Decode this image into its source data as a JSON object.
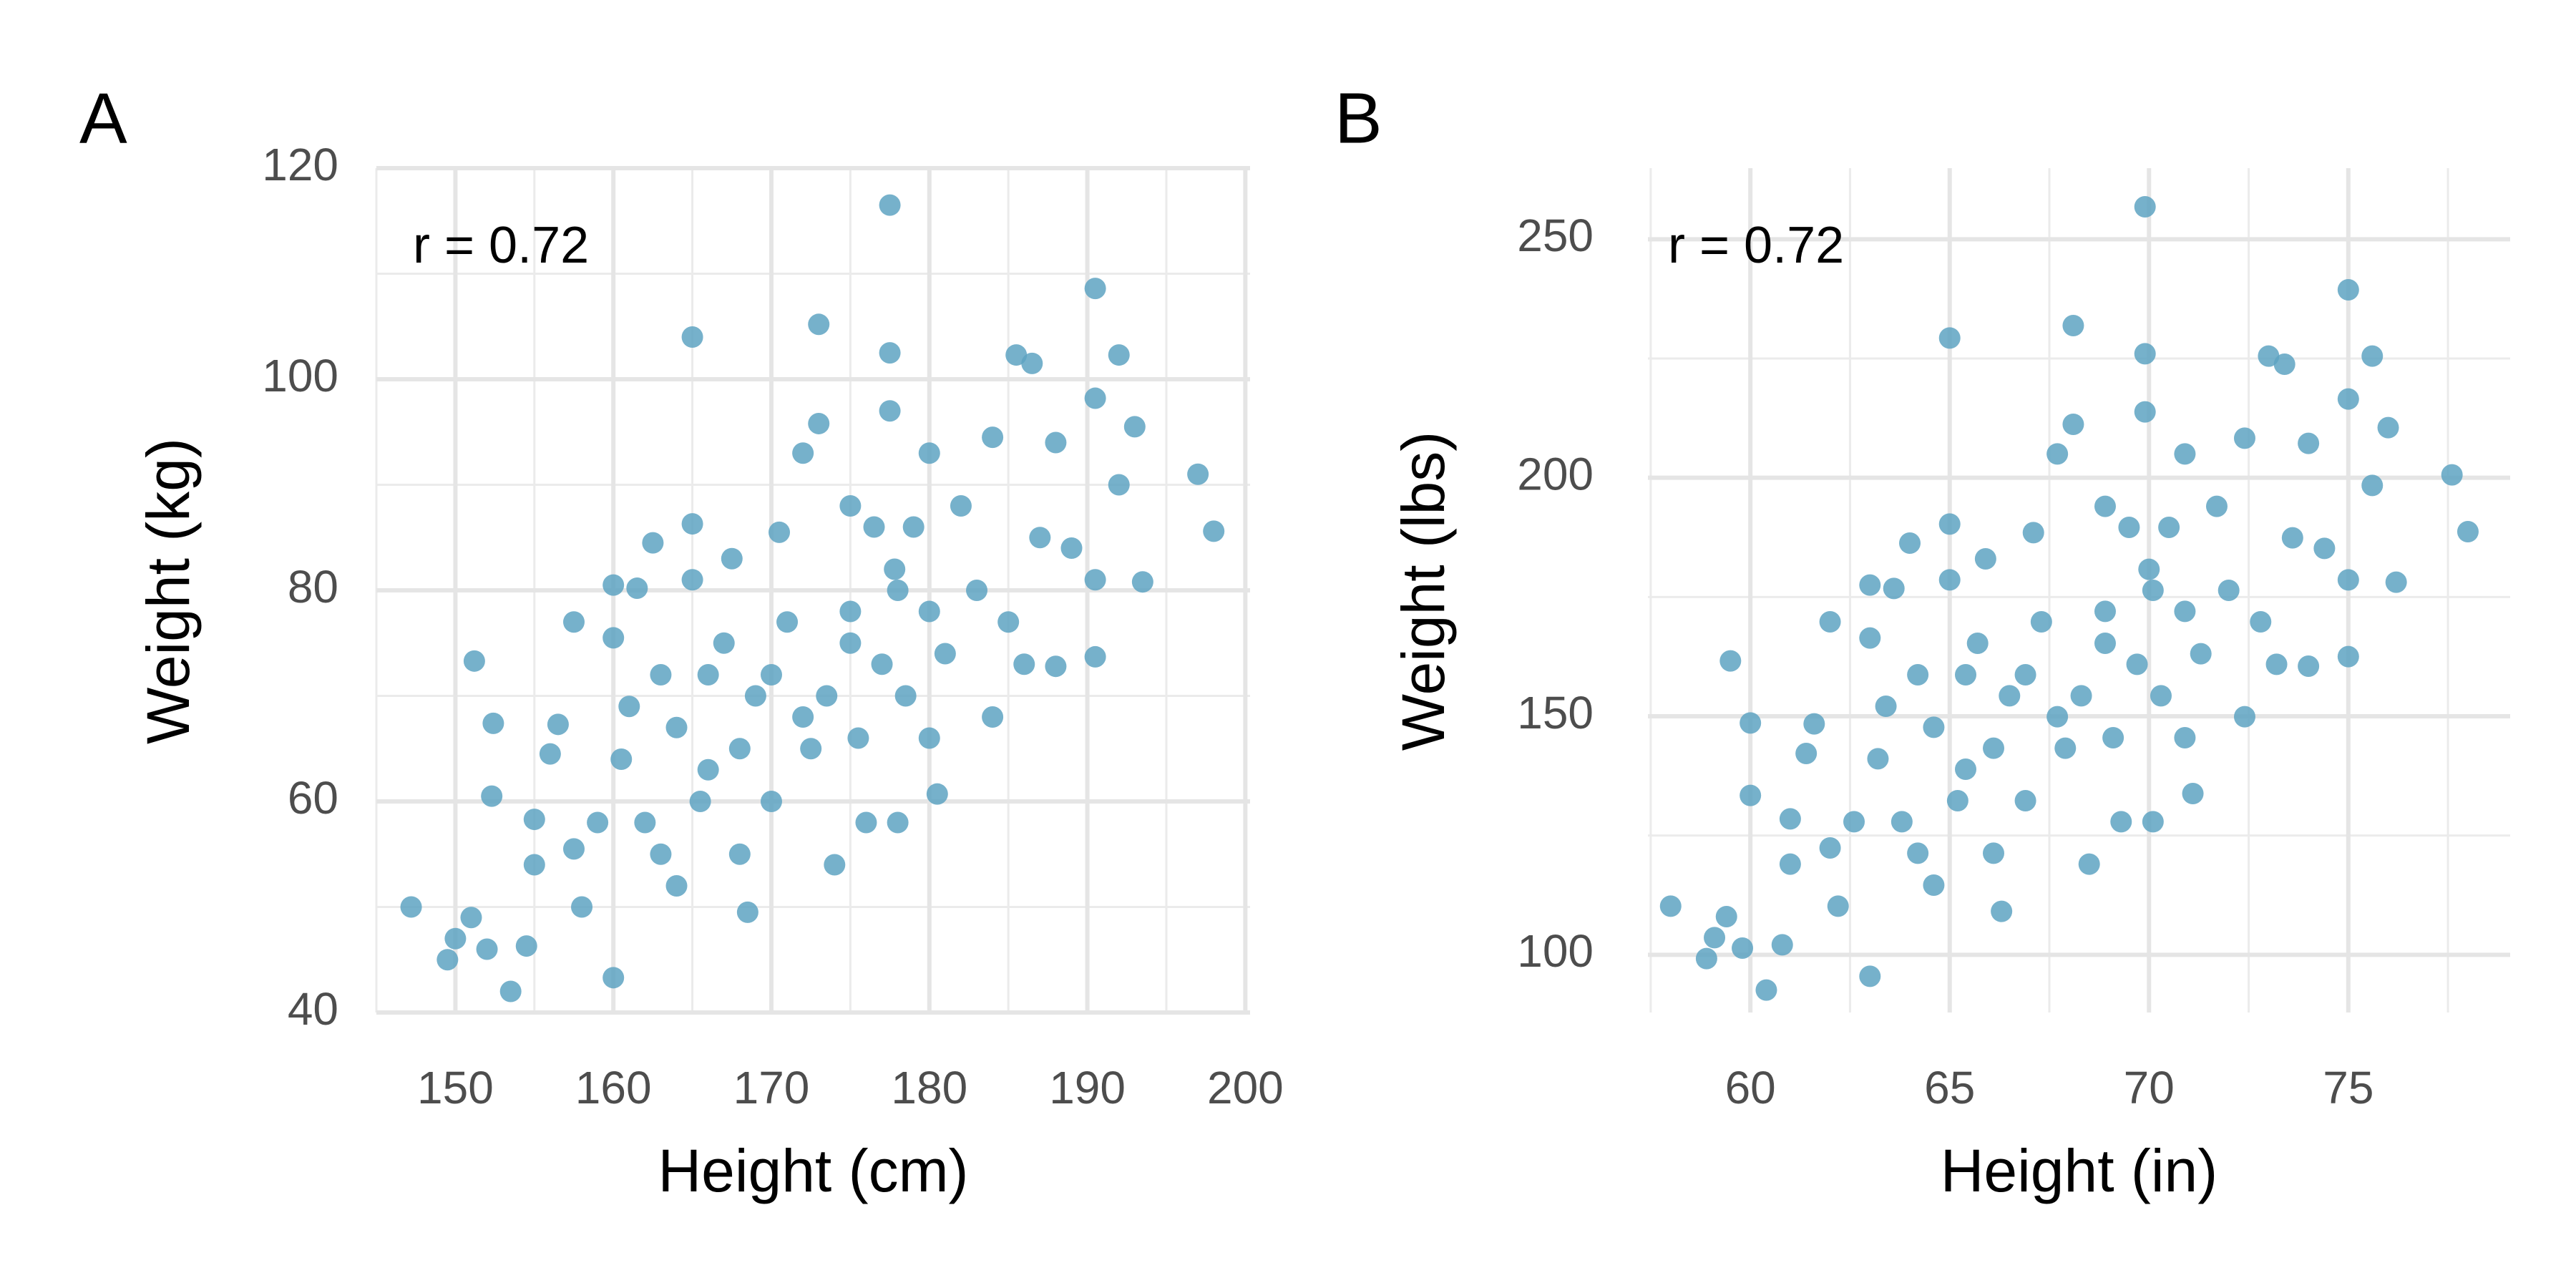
{
  "chart_data": [
    {
      "type": "scatter",
      "panel_label": "A",
      "annotation": "r = 0.72",
      "xlabel": "Height (cm)",
      "ylabel": "Weight (kg)",
      "color": "#5ea3c2",
      "grid": true,
      "xlim": [
        145,
        200.3
      ],
      "ylim": [
        40,
        120
      ],
      "xticks": [
        150,
        160,
        170,
        180,
        190,
        200
      ],
      "yticks": [
        40,
        60,
        80,
        100,
        120
      ],
      "xminor": [
        145,
        155,
        165,
        175,
        185,
        195
      ],
      "yminor": [
        50,
        70,
        90,
        110
      ],
      "x": [
        147.2,
        149.5,
        150,
        151,
        151.2,
        152,
        152.4,
        152.3,
        153.5,
        154.5,
        155,
        155,
        156,
        156.5,
        157.5,
        157.5,
        158,
        159,
        160,
        160,
        160,
        160.5,
        161,
        161.5,
        162.5,
        163,
        163,
        164,
        165,
        165,
        165,
        165.5,
        166,
        167,
        167.5,
        168,
        168,
        168.5,
        169,
        170,
        170.5,
        171,
        172,
        172.5,
        173,
        173,
        173.5,
        174,
        175,
        175,
        175.5,
        176,
        176.5,
        177,
        177.5,
        177.5,
        177.5,
        177.8,
        178,
        178.5,
        179,
        180,
        180,
        180.5,
        181,
        182,
        183,
        184,
        184,
        185,
        185.5,
        186,
        186.5,
        187,
        188,
        188,
        189,
        190.5,
        190.5,
        190.5,
        190.5,
        192,
        192,
        193,
        193.5,
        197,
        198,
        170,
        175,
        178,
        162,
        166,
        172,
        180,
        164
      ],
      "values": [
        50,
        45,
        47,
        49,
        73.3,
        46,
        67.4,
        60.5,
        42,
        46.3,
        54,
        58.3,
        64.5,
        67.3,
        77,
        55.5,
        50,
        58,
        80.5,
        75.5,
        43.3,
        64,
        69,
        80.2,
        84.5,
        72,
        55,
        67,
        104,
        86.3,
        81,
        60,
        72,
        75,
        83,
        65,
        55,
        49.5,
        70,
        60,
        85.5,
        77,
        93,
        65,
        105.2,
        95.8,
        70,
        54,
        88,
        78,
        66,
        58,
        86,
        73,
        116.5,
        102.5,
        97,
        82,
        58,
        70,
        86,
        93,
        66,
        60.7,
        74,
        88,
        80,
        94.5,
        68,
        77,
        102.3,
        73,
        101.5,
        85,
        94,
        72.8,
        84,
        108.6,
        98.2,
        73.7,
        81,
        102.3,
        90,
        95.5,
        80.8,
        91,
        85.6,
        72,
        75,
        80,
        58,
        63,
        68,
        78,
        52
      ]
    },
    {
      "type": "scatter",
      "panel_label": "B",
      "annotation": "r = 0.72",
      "xlabel": "Height (in)",
      "ylabel": "Weight (lbs)",
      "color": "#5ea3c2",
      "grid": true,
      "xlim": [
        57.43,
        79.06
      ],
      "ylim": [
        87.9,
        264.9
      ],
      "xticks": [
        60,
        65,
        70,
        75
      ],
      "yticks": [
        100,
        150,
        200,
        250
      ],
      "xminor": [
        57.5,
        62.5,
        67.5,
        72.5,
        77.5
      ],
      "yminor": [
        125,
        175,
        225
      ],
      "x": [
        58.0,
        58.9,
        59.1,
        59.4,
        59.5,
        59.8,
        60.0,
        60.0,
        60.4,
        60.8,
        61.0,
        61.0,
        61.4,
        61.6,
        62.0,
        62.0,
        62.2,
        62.6,
        63.0,
        63.0,
        63.0,
        63.2,
        63.4,
        63.6,
        64.0,
        64.2,
        64.2,
        64.6,
        65.0,
        65.0,
        65.0,
        65.2,
        65.4,
        65.7,
        65.9,
        66.1,
        66.1,
        66.3,
        66.5,
        66.9,
        67.1,
        67.3,
        67.7,
        67.9,
        68.1,
        68.1,
        68.3,
        68.5,
        68.9,
        68.9,
        69.1,
        69.3,
        69.5,
        69.7,
        69.9,
        69.9,
        69.9,
        70.0,
        70.1,
        70.3,
        70.5,
        70.9,
        70.9,
        71.1,
        71.3,
        71.7,
        72.0,
        72.4,
        72.4,
        72.8,
        73.0,
        73.2,
        73.4,
        73.6,
        74.0,
        74.0,
        74.4,
        75.0,
        75.0,
        75.0,
        75.0,
        75.6,
        75.6,
        76.0,
        76.2,
        77.6,
        78.0,
        66.9,
        68.9,
        70.1,
        63.8,
        65.4,
        67.7,
        70.9,
        64.6
      ],
      "values": [
        110.2,
        99.2,
        103.6,
        108.0,
        161.6,
        101.4,
        148.6,
        133.4,
        92.6,
        102.1,
        119.0,
        128.5,
        142.2,
        148.4,
        169.8,
        122.4,
        110.2,
        127.9,
        177.5,
        166.4,
        95.5,
        141.1,
        152.1,
        176.8,
        186.3,
        158.7,
        121.3,
        147.7,
        229.3,
        190.3,
        178.6,
        132.3,
        158.7,
        165.3,
        183.0,
        143.3,
        121.3,
        109.1,
        154.3,
        132.3,
        188.5,
        169.8,
        205.0,
        143.3,
        231.9,
        211.2,
        154.3,
        119.0,
        194.0,
        172.0,
        145.5,
        127.9,
        189.6,
        160.9,
        256.8,
        226.0,
        213.8,
        180.8,
        127.9,
        154.3,
        189.6,
        205.0,
        145.5,
        133.8,
        163.1,
        194.0,
        176.4,
        208.3,
        149.9,
        169.8,
        225.5,
        160.9,
        223.8,
        187.4,
        207.2,
        160.5,
        185.2,
        239.4,
        216.5,
        162.5,
        178.6,
        225.5,
        198.4,
        210.5,
        178.1,
        200.6,
        188.7,
        158.7,
        165.3,
        176.4,
        127.9,
        138.9,
        149.9,
        172.0,
        114.6
      ]
    }
  ]
}
